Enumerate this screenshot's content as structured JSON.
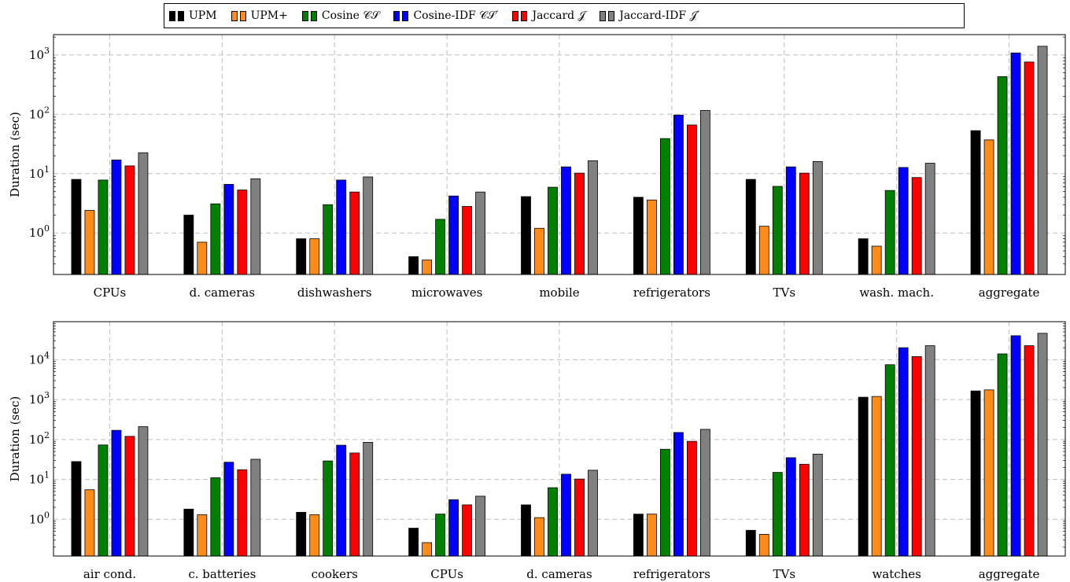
{
  "legend": {
    "items": [
      {
        "label": "UPM",
        "color": "#000000"
      },
      {
        "label": "UPM+",
        "color": "#ff8c1a"
      },
      {
        "label": "Cosine 𝒞𝒮",
        "color": "#008000"
      },
      {
        "label": "Cosine-IDF 𝒞𝒮′",
        "color": "#0000ff"
      },
      {
        "label": "Jaccard 𝒥",
        "color": "#ff0000"
      },
      {
        "label": "Jaccard-IDF 𝒥′",
        "color": "#808080"
      }
    ]
  },
  "chart_data": [
    {
      "type": "bar",
      "ylabel": "Duration (sec)",
      "yscale": "log",
      "ylim": [
        0.2,
        2200
      ],
      "yticks": [
        1,
        10,
        100,
        1000
      ],
      "ytick_labels": [
        "10^0",
        "10^1",
        "10^2",
        "10^3"
      ],
      "grid": true,
      "legend_position": "top",
      "categories": [
        "CPUs",
        "d. cameras",
        "dishwashers",
        "microwaves",
        "mobile",
        "refrigerators",
        "TVs",
        "wash. mach.",
        "aggregate"
      ],
      "series": [
        {
          "name": "UPM",
          "color": "#000000",
          "values": [
            8.0,
            2.0,
            0.8,
            0.4,
            4.1,
            4.0,
            8.0,
            0.8,
            53
          ]
        },
        {
          "name": "UPM+",
          "color": "#ff8c1a",
          "values": [
            2.4,
            0.7,
            0.8,
            0.35,
            1.2,
            3.6,
            1.3,
            0.6,
            37
          ]
        },
        {
          "name": "Cosine CS",
          "color": "#008000",
          "values": [
            7.8,
            3.1,
            3.0,
            1.7,
            5.9,
            39,
            6.1,
            5.2,
            430
          ]
        },
        {
          "name": "Cosine-IDF CS'",
          "color": "#0000ff",
          "values": [
            17,
            6.6,
            7.8,
            4.2,
            13,
            97,
            13,
            12.7,
            1080
          ]
        },
        {
          "name": "Jaccard J",
          "color": "#ff0000",
          "values": [
            13.5,
            5.3,
            4.9,
            2.8,
            10.2,
            66,
            10.2,
            8.6,
            760
          ]
        },
        {
          "name": "Jaccard-IDF J'",
          "color": "#808080",
          "values": [
            22.5,
            8.2,
            8.8,
            4.9,
            16.5,
            116,
            16,
            15,
            1400
          ]
        }
      ]
    },
    {
      "type": "bar",
      "ylabel": "Duration (sec)",
      "yscale": "log",
      "ylim": [
        0.12,
        90000
      ],
      "yticks": [
        1,
        10,
        100,
        1000,
        10000
      ],
      "ytick_labels": [
        "10^0",
        "10^1",
        "10^2",
        "10^3",
        "10^4"
      ],
      "grid": true,
      "categories": [
        "air cond.",
        "c. batteries",
        "cookers",
        "CPUs",
        "d. cameras",
        "refrigerators",
        "TVs",
        "watches",
        "aggregate"
      ],
      "series": [
        {
          "name": "UPM",
          "color": "#000000",
          "values": [
            28,
            1.8,
            1.5,
            0.6,
            2.3,
            1.35,
            0.53,
            1150,
            1650
          ]
        },
        {
          "name": "UPM+",
          "color": "#ff8c1a",
          "values": [
            5.5,
            1.3,
            1.3,
            0.26,
            1.1,
            1.35,
            0.42,
            1200,
            1750
          ]
        },
        {
          "name": "Cosine CS",
          "color": "#008000",
          "values": [
            73,
            11,
            29,
            1.35,
            6.2,
            57,
            15,
            7500,
            14000
          ]
        },
        {
          "name": "Cosine-IDF CS'",
          "color": "#0000ff",
          "values": [
            170,
            27,
            72,
            3.1,
            13.5,
            150,
            35,
            20000,
            40000
          ]
        },
        {
          "name": "Jaccard J",
          "color": "#ff0000",
          "values": [
            120,
            17.5,
            46,
            2.3,
            10.2,
            90,
            24,
            12000,
            22500
          ]
        },
        {
          "name": "Jaccard-IDF J'",
          "color": "#808080",
          "values": [
            210,
            32,
            85,
            3.8,
            17,
            180,
            43,
            22500,
            46000
          ]
        }
      ]
    }
  ]
}
